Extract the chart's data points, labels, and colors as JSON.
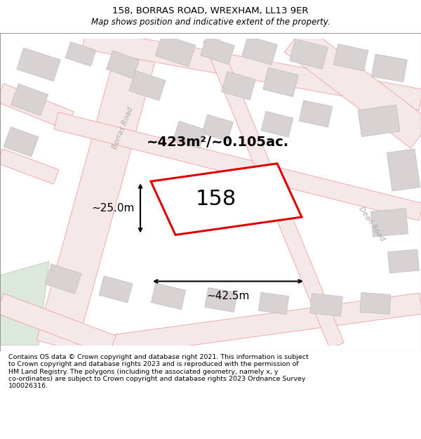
{
  "title": "158, BORRAS ROAD, WREXHAM, LL13 9ER",
  "subtitle": "Map shows position and indicative extent of the property.",
  "footer": "Contains OS data © Crown copyright and database right 2021. This information is subject\nto Crown copyright and database rights 2023 and is reproduced with the permission of\nHM Land Registry. The polygons (including the associated geometry, namely x, y\nco-ordinates) are subject to Crown copyright and database rights 2023 Ordnance Survey\n100026316.",
  "area_label": "~423m²/~0.105ac.",
  "number_label": "158",
  "dim_width": "~42.5m",
  "dim_height": "~25.0m",
  "road_label_borras": "Borras Road",
  "road_label_dean": "Dean Road",
  "map_bg": "#f7f0f0",
  "road_stroke": "#f0a0a0",
  "road_fill": "#f5e8e8",
  "building_fill": "#d8d2d2",
  "building_edge": "#c8c0c0",
  "plot_edge": "#dd0000",
  "plot_fill": "#ffffff",
  "green_fill": "#dce8dc",
  "title_fontsize": 9.5,
  "subtitle_fontsize": 8.5,
  "footer_fontsize": 6.8,
  "area_fontsize": 14,
  "num_fontsize": 22,
  "dim_fontsize": 11
}
